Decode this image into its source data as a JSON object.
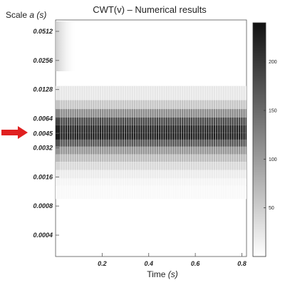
{
  "chart_data": {
    "type": "heatmap",
    "title": "CWT(v) – Numerical results",
    "ylabel_prefix": "Scale ",
    "ylabel_var": "a",
    "ylabel_unit": " (s)",
    "xlabel_prefix": "Time ",
    "xlabel_unit": "(s)",
    "x_ticks": [
      "0.2",
      "0.4",
      "0.6",
      "0.8"
    ],
    "x_tick_values": [
      0.2,
      0.4,
      0.6,
      0.8
    ],
    "xlim": [
      0.0,
      0.82
    ],
    "y_scale": "log",
    "y_ticks": [
      "0.0512",
      "0.0256",
      "0.0128",
      "0.0064",
      "0.0045",
      "0.0032",
      "0.0016",
      "0.0008",
      "0.0004"
    ],
    "y_tick_values": [
      0.0512,
      0.0256,
      0.0128,
      0.0064,
      0.0045,
      0.0032,
      0.0016,
      0.0008,
      0.0004
    ],
    "highlighted_tick": "0.0045",
    "highlight_color": "#e02020",
    "colorbar": {
      "ticks": [
        "50",
        "100",
        "150",
        "200"
      ],
      "tick_values": [
        50,
        100,
        150,
        200
      ],
      "range": [
        0,
        240
      ],
      "colormap": "gray_reversed"
    },
    "rows": [
      {
        "scale": 0.011,
        "value": 25
      },
      {
        "scale": 0.009,
        "value": 60
      },
      {
        "scale": 0.0072,
        "value": 120
      },
      {
        "scale": 0.006,
        "value": 190
      },
      {
        "scale": 0.005,
        "value": 225
      },
      {
        "scale": 0.0042,
        "value": 230
      },
      {
        "scale": 0.0036,
        "value": 175
      },
      {
        "scale": 0.003,
        "value": 110
      },
      {
        "scale": 0.0025,
        "value": 70
      },
      {
        "scale": 0.0021,
        "value": 40
      },
      {
        "scale": 0.0017,
        "value": 20
      },
      {
        "scale": 0.0014,
        "value": 10
      },
      {
        "scale": 0.0012,
        "value": 6
      }
    ]
  }
}
